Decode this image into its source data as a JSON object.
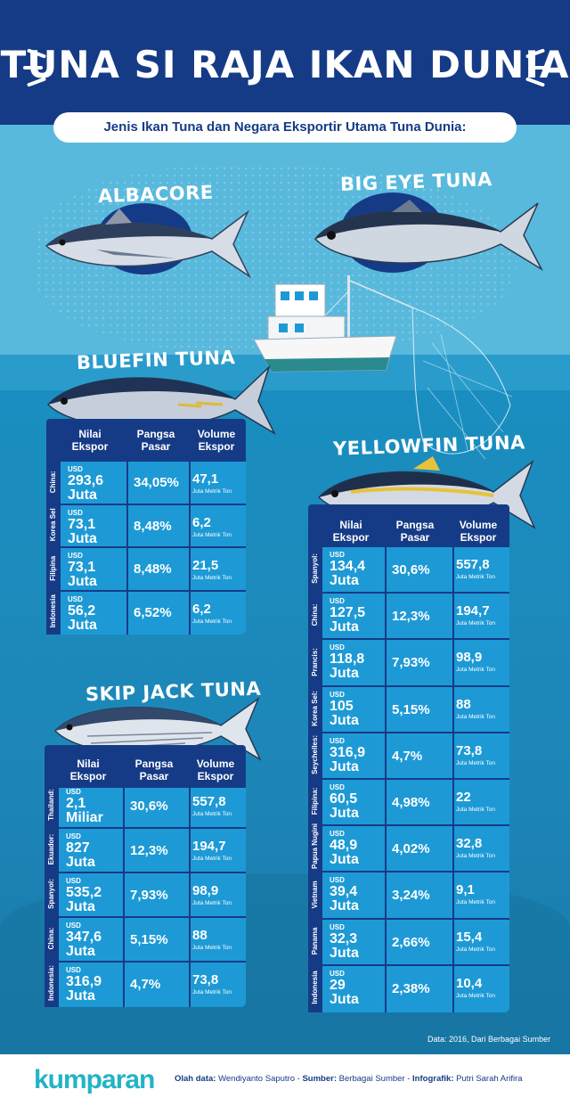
{
  "title": "TUNA SI RAJA IKAN DUNIA",
  "subtitle": "Jenis Ikan Tuna dan Negara Eksportir Utama Tuna Dunia:",
  "species_names": {
    "albacore": "ALBACORE",
    "bigeye": "BIG EYE TUNA",
    "bluefin": "BLUEFIN TUNA",
    "yellowfin": "YELLOWFIN TUNA",
    "skipjack": "SKIP JACK TUNA"
  },
  "column_headers": {
    "nilai": "Nilai\nEkspor",
    "pangsa": "Pangsa\nPasar",
    "volume": "Volume\nEkspor"
  },
  "unit_prefix": "USD",
  "volume_unit": "Juta Metrik Ton",
  "bluefin_rows": [
    {
      "country": "China:",
      "value": "293,6",
      "unit": "Juta",
      "share": "34,05%",
      "volume": "47,1"
    },
    {
      "country": "Korea Sel",
      "value": "73,1",
      "unit": "Juta",
      "share": "8,48%",
      "volume": "6,2"
    },
    {
      "country": "Filipina",
      "value": "73,1",
      "unit": "Juta",
      "share": "8,48%",
      "volume": "21,5"
    },
    {
      "country": "Indonesia",
      "value": "56,2",
      "unit": "Juta",
      "share": "6,52%",
      "volume": "6,2"
    }
  ],
  "skipjack_rows": [
    {
      "country": "Thailand:",
      "value": "2,1",
      "unit": "Miliar",
      "share": "30,6%",
      "volume": "557,8"
    },
    {
      "country": "Ekuador:",
      "value": "827",
      "unit": "Juta",
      "share": "12,3%",
      "volume": "194,7"
    },
    {
      "country": "Spanyol:",
      "value": "535,2",
      "unit": "Juta",
      "share": "7,93%",
      "volume": "98,9"
    },
    {
      "country": "China:",
      "value": "347,6",
      "unit": "Juta",
      "share": "5,15%",
      "volume": "88"
    },
    {
      "country": "Indonesia:",
      "value": "316,9",
      "unit": "Juta",
      "share": "4,7%",
      "volume": "73,8"
    }
  ],
  "yellowfin_rows": [
    {
      "country": "Spanyol:",
      "value": "134,4",
      "unit": "Juta",
      "share": "30,6%",
      "volume": "557,8"
    },
    {
      "country": "China:",
      "value": "127,5",
      "unit": "Juta",
      "share": "12,3%",
      "volume": "194,7"
    },
    {
      "country": "Prancis:",
      "value": "118,8",
      "unit": "Juta",
      "share": "7,93%",
      "volume": "98,9"
    },
    {
      "country": "Korea Sel:",
      "value": "105",
      "unit": "Juta",
      "share": "5,15%",
      "volume": "88"
    },
    {
      "country": "Seychelles:",
      "value": "316,9",
      "unit": "Juta",
      "share": "4,7%",
      "volume": "73,8"
    },
    {
      "country": "Filipina:",
      "value": "60,5",
      "unit": "Juta",
      "share": "4,98%",
      "volume": "22"
    },
    {
      "country": "Papua Nugini",
      "value": "48,9",
      "unit": "Juta",
      "share": "4,02%",
      "volume": "32,8"
    },
    {
      "country": "Vietnam",
      "value": "39,4",
      "unit": "Juta",
      "share": "3,24%",
      "volume": "9,1"
    },
    {
      "country": "Panama",
      "value": "32,3",
      "unit": "Juta",
      "share": "2,66%",
      "volume": "15,4"
    },
    {
      "country": "Indonesia",
      "value": "29",
      "unit": "Juta",
      "share": "2,38%",
      "volume": "10,4"
    }
  ],
  "source_note": "Data: 2016, Dari Berbagai Sumber",
  "footer": {
    "logo": "kumparan",
    "olah_label": "Olah data:",
    "olah_value": "Wendiyanto Saputro",
    "sumber_label": "Sumber:",
    "sumber_value": "Berbagai Sumber",
    "infografik_label": "Infografik:",
    "infografik_value": "Putri Sarah Arifira"
  },
  "colors": {
    "navy": "#163b86",
    "panel": "#1d9ad6",
    "sky": "#58b9dd",
    "sea": "#1a8ec0",
    "logo": "#23b3c7"
  }
}
